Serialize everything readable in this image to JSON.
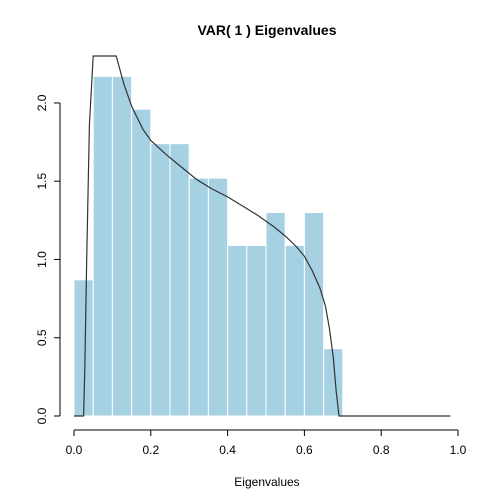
{
  "chart_data": {
    "type": "bar",
    "title": "VAR( 1 ) Eigenvalues",
    "xlabel": "Eigenvalues",
    "ylabel": "",
    "xlim": [
      0.0,
      1.0
    ],
    "ylim": [
      0.0,
      2.3
    ],
    "grid": false,
    "x_ticks": [
      "0.0",
      "0.2",
      "0.4",
      "0.6",
      "0.8",
      "1.0"
    ],
    "y_ticks": [
      "0.0",
      "0.5",
      "1.0",
      "1.5",
      "2.0"
    ],
    "bin_width": 0.05,
    "bins_start": [
      0.0,
      0.05,
      0.1,
      0.15,
      0.2,
      0.25,
      0.3,
      0.35,
      0.4,
      0.45,
      0.5,
      0.55,
      0.6,
      0.65
    ],
    "values": [
      0.87,
      2.17,
      2.17,
      1.96,
      1.74,
      1.74,
      1.52,
      1.52,
      1.09,
      1.09,
      1.3,
      1.09,
      1.3,
      0.43
    ],
    "bar_color": "#a5d1e3",
    "bar_edge_color": "#ffffff",
    "density_curve": {
      "color": "#333333",
      "points": [
        [
          0.0,
          0.0
        ],
        [
          0.01,
          0.0
        ],
        [
          0.025,
          0.0
        ],
        [
          0.028,
          0.3
        ],
        [
          0.033,
          1.0
        ],
        [
          0.04,
          1.86
        ],
        [
          0.05,
          2.3
        ],
        [
          0.11,
          2.3
        ],
        [
          0.13,
          2.12
        ],
        [
          0.15,
          1.98
        ],
        [
          0.18,
          1.83
        ],
        [
          0.2,
          1.76
        ],
        [
          0.24,
          1.67
        ],
        [
          0.28,
          1.59
        ],
        [
          0.32,
          1.51
        ],
        [
          0.36,
          1.45
        ],
        [
          0.4,
          1.4
        ],
        [
          0.44,
          1.34
        ],
        [
          0.48,
          1.28
        ],
        [
          0.52,
          1.21
        ],
        [
          0.55,
          1.15
        ],
        [
          0.58,
          1.08
        ],
        [
          0.6,
          1.02
        ],
        [
          0.62,
          0.93
        ],
        [
          0.64,
          0.82
        ],
        [
          0.655,
          0.7
        ],
        [
          0.665,
          0.56
        ],
        [
          0.675,
          0.38
        ],
        [
          0.683,
          0.15
        ],
        [
          0.69,
          0.0
        ],
        [
          0.98,
          0.0
        ]
      ]
    }
  }
}
